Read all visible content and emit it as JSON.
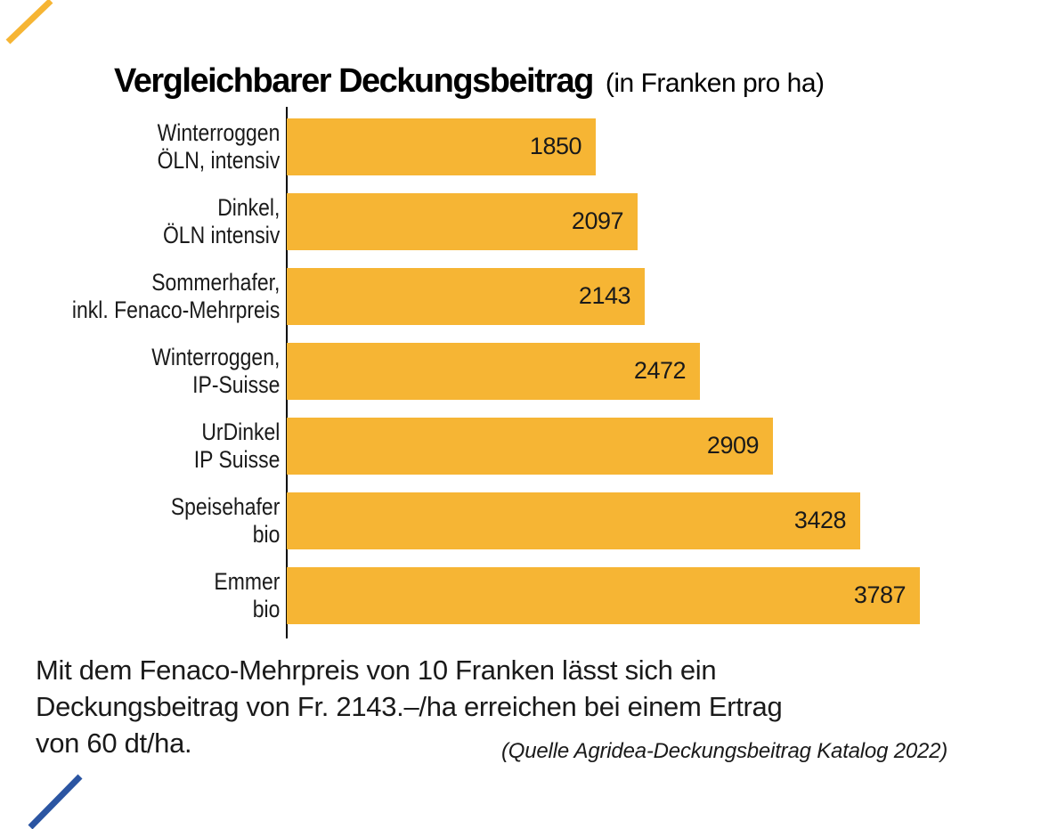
{
  "title": {
    "main": "Vergleichbarer Deckungsbeitrag",
    "unit": "(in Franken pro ha)"
  },
  "chart_data": {
    "type": "bar",
    "orientation": "horizontal",
    "title": "Vergleichbarer Deckungsbeitrag",
    "unit_label": "(in Franken pro ha)",
    "categories": [
      "Winterroggen\nÖLN, intensiv",
      "Dinkel,\nÖLN intensiv",
      "Sommerhafer,\ninkl. Fenaco-Mehrpreis",
      "Winterroggen,\nIP-Suisse",
      "UrDinkel\nIP Suisse",
      "Speisehafer\nbio",
      "Emmer\nbio"
    ],
    "values": [
      1850,
      2097,
      2143,
      2472,
      2909,
      3428,
      3787
    ],
    "value_labels": [
      "1850",
      "2097",
      "2143",
      "2472",
      "2909",
      "3428",
      "3787"
    ],
    "xlim": [
      0,
      3790
    ],
    "grid": false,
    "legend": "none",
    "bar_color": "#F6B534"
  },
  "caption": {
    "lines": [
      "Mit dem Fenaco-Mehrpreis von 10 Franken lässt sich ein",
      "Deckungsbeitrag von Fr. 2143.–/ha erreichen bei einem Ertrag",
      "von 60 dt/ha."
    ],
    "source": "(Quelle Agridea-Deckungsbeitrag Katalog 2022)"
  },
  "decorations": {
    "top_left_accent_color": "#F6B534",
    "bottom_left_accent_color": "#2B55A2"
  }
}
